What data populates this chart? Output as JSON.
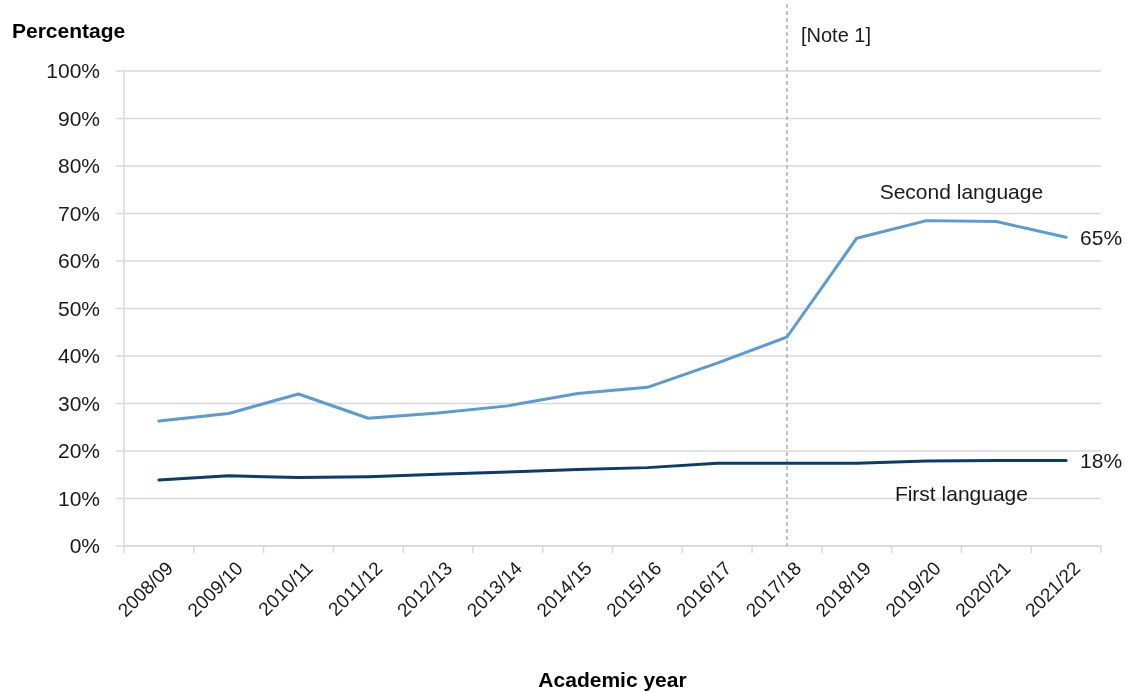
{
  "chart_data": {
    "type": "line",
    "xlabel": "Academic year",
    "ylabel": "Percentage",
    "categories": [
      "2008/09",
      "2009/10",
      "2010/11",
      "2011/12",
      "2012/13",
      "2013/14",
      "2014/15",
      "2015/16",
      "2016/17",
      "2017/18",
      "2018/19",
      "2019/20",
      "2020/21",
      "2021/22"
    ],
    "series": [
      {
        "name": "Second language",
        "color": "#5b9bd0",
        "values": [
          26.3,
          27.9,
          32.0,
          26.9,
          28.0,
          29.5,
          32.1,
          33.4,
          38.5,
          44.0,
          64.8,
          68.5,
          68.3,
          65
        ],
        "value_labels": [
          null,
          null,
          null,
          null,
          null,
          null,
          null,
          null,
          null,
          null,
          null,
          null,
          null,
          "65%"
        ]
      },
      {
        "name": "First language",
        "color": "#0c3c6a",
        "values": [
          13.9,
          14.8,
          14.4,
          14.6,
          15.1,
          15.6,
          16.1,
          16.5,
          17.4,
          17.4,
          17.4,
          17.9,
          18.0,
          18
        ],
        "value_labels": [
          null,
          null,
          null,
          null,
          null,
          null,
          null,
          null,
          null,
          null,
          null,
          null,
          null,
          "18%"
        ]
      }
    ],
    "ylim": [
      0,
      100
    ],
    "yticks": [
      {
        "value": 0,
        "label": "0%"
      },
      {
        "value": 10,
        "label": "10%"
      },
      {
        "value": 20,
        "label": "20%"
      },
      {
        "value": 30,
        "label": "30%"
      },
      {
        "value": 40,
        "label": "40%"
      },
      {
        "value": 50,
        "label": "50%"
      },
      {
        "value": 60,
        "label": "60%"
      },
      {
        "value": 70,
        "label": "70%"
      },
      {
        "value": 80,
        "label": "80%"
      },
      {
        "value": 90,
        "label": "90%"
      },
      {
        "value": 100,
        "label": "100%"
      }
    ],
    "grid": "y",
    "ref_lines": [
      {
        "axis": "x",
        "value": "2017/18",
        "label": "[Note 1]",
        "color": "#999999",
        "line_style": "dashed"
      }
    ]
  }
}
